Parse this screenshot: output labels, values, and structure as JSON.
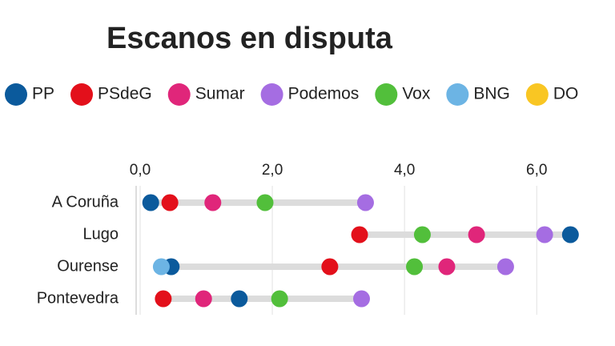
{
  "chart_data": {
    "type": "dot",
    "title": "Escanos en disputa",
    "categories": [
      "A Coruña",
      "Lugo",
      "Ourense",
      "Pontevedra"
    ],
    "series": [
      {
        "name": "PP",
        "color": "#0b5a9c",
        "values": [
          0.16,
          6.51,
          0.47,
          1.5
        ]
      },
      {
        "name": "PSdeG",
        "color": "#e3101b",
        "values": [
          0.45,
          3.32,
          2.87,
          0.35
        ]
      },
      {
        "name": "Sumar",
        "color": "#e0267a",
        "values": [
          1.1,
          5.09,
          4.64,
          0.96
        ]
      },
      {
        "name": "Podemos",
        "color": "#a56de2",
        "values": [
          3.41,
          6.12,
          5.53,
          3.35
        ]
      },
      {
        "name": "Vox",
        "color": "#52bf3b",
        "values": [
          1.89,
          4.27,
          4.15,
          2.11
        ]
      },
      {
        "name": "BNG",
        "color": "#6cb4e4",
        "values": [
          null,
          null,
          0.32,
          null
        ]
      },
      {
        "name": "DO",
        "color": "#f9c623",
        "values": [
          null,
          null,
          null,
          null
        ]
      }
    ],
    "xlim": [
      0,
      6.7
    ],
    "xticks": [
      {
        "value": 0,
        "label": "0,0"
      },
      {
        "value": 2,
        "label": "2,0"
      },
      {
        "value": 4,
        "label": "4,0"
      },
      {
        "value": 6,
        "label": "6,0"
      }
    ],
    "grid": true
  }
}
